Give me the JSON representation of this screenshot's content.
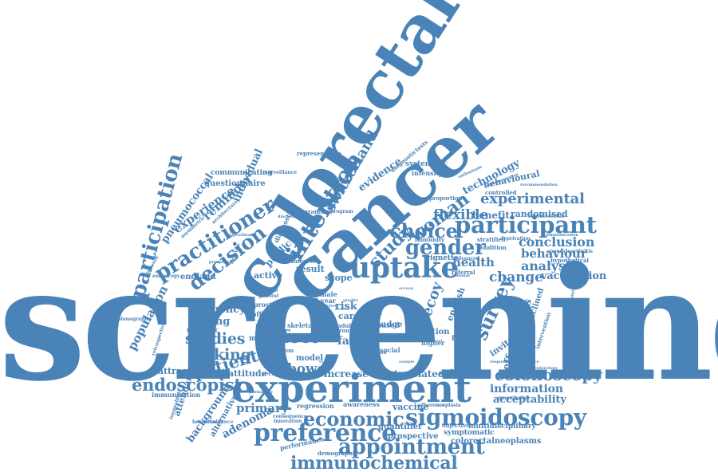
{
  "style": {
    "word_color": "#4a83b7",
    "background": "#ffffff"
  },
  "words": {
    "screening": "screening",
    "colorectal": "colorectal",
    "cancer": "cancer",
    "experiment": "experiment",
    "uptake": "uptake",
    "participant": "participant",
    "intention": "intention",
    "participation": "participation",
    "practitioner": "practitioner",
    "decision": "decision",
    "choice": "choice",
    "gender": "gender",
    "study": "study",
    "woman": "woman",
    "switzerland": "switzerland",
    "preference": "preference",
    "appointment": "appointment",
    "immunochemical": "immunochemical",
    "economic": "economic",
    "sigmoidoscopy": "sigmoidoscopy",
    "colonoscopy": "colonoscopy",
    "endoscopist": "endoscopist",
    "experimental": "experimental",
    "flexible": "flexible",
    "survey": "survey",
    "effect": "effect",
    "bowel": "bowel",
    "studies": "studies",
    "making": "making",
    "patient": "patient",
    "population": "population",
    "experience": "experience",
    "reminder": "reminder",
    "pneumococcal": "pneumococcal",
    "questionnaire": "questionnaire",
    "individual": "individual",
    "evidence": "evidence",
    "technology": "technology",
    "behavioural": "behavioural",
    "benefit": "benefit",
    "randomised": "randomised",
    "conclusion": "conclusion",
    "behaviour": "behaviour",
    "analysis": "analysis",
    "health": "health",
    "change": "change",
    "vaccination": "vaccination",
    "effectiveness": "effectiveness",
    "information": "information",
    "acceptability": "acceptability",
    "primary": "primary",
    "adenoma": "adenoma",
    "background": "background",
    "attendance": "attendance",
    "frequency": "frequency",
    "testing": "testing",
    "attraction": "attraction",
    "attitude": "attitude",
    "increase": "increase",
    "control": "control",
    "related": "related",
    "science": "science",
    "faecal": "faecal",
    "test": "test",
    "risk": "risk",
    "care": "care",
    "decoy": "decoy",
    "active": "active",
    "result": "result",
    "scope": "scope",
    "england": "england",
    "public": "public",
    "communicating": "communicating",
    "systematic": "systematic",
    "intensity": "intensity",
    "diagnostictests": "diagnostictests",
    "representative": "representative",
    "controlled": "controlled",
    "prospective": "prospective",
    "symptomatic": "symptomatic",
    "multidisciplinary": "multidisciplinary",
    "colorectalneoplasms": "colorectalneoplasms",
    "vaccine": "vaccine",
    "quantifier": "quantifier",
    "performance": "performance",
    "demographic": "demographic",
    "regression": "regression",
    "awareness": "awareness",
    "message": "message",
    "model": "model",
    "immunization": "immunization",
    "alternative": "alternative",
    "responder": "responder",
    "hypothetical": "hypothetical",
    "spondyloarthritis": "spondyloarthritis",
    "proportion": "proportion",
    "immunity": "immunity",
    "stratified": "stratified",
    "deprivation": "deprivation",
    "condition": "condition",
    "vignette": "vignette",
    "referral": "referral",
    "quantitative": "quantitative",
    "english": "english",
    "female": "female",
    "option": "option",
    "higher": "higher",
    "norm": "norm",
    "nudge": "nudge",
    "based": "based",
    "breast": "breast",
    "social": "social",
    "adult": "adult",
    "group": "group",
    "skeletal": "skeletal",
    "number": "number",
    "detection": "detection",
    "offering": "offering",
    "prostate": "prostate",
    "male": "male",
    "year": "year",
    "sectional": "sectional",
    "interest": "interest",
    "program": "program",
    "programme": "programme",
    "diagnostic": "diagnostic",
    "surveillance": "surveillance",
    "architecture": "architecture",
    "asymmetric": "asymmetric",
    "invitation": "invitation",
    "objective": "objective",
    "colonography": "colonography",
    "inequalities": "inequalities",
    "healthcare": "healthcare",
    "retrospective": "retrospective",
    "endoscopy": "endoscopy",
    "dominance": "dominance",
    "consequence": "consequence",
    "innovation": "innovation",
    "adherence": "adherence",
    "neoplasia": "neoplasia",
    "advanced": "advanced",
    "national": "national",
    "gastroenterology": "gastroenterology",
    "acceptance": "acceptance",
    "respondent": "respondent",
    "disinclined": "disinclined",
    "intervention": "intervention",
    "coverage": "coverage",
    "characteristic": "characteristic",
    "implementation": "implementation",
    "administration": "administration",
    "recommendation": "recommendation",
    "enthusiasm": "enthusiasm",
    "uncertainty": "uncertainty",
    "discrete": "discrete",
    "probability": "probability",
    "preventive": "preventive",
    "improve": "improve",
    "review": "review",
    "invited": "invited",
    "general": "general",
    "variable": "variable",
    "barrier": "barrier",
    "decile": "decile",
    "mailed": "mailed",
    "person": "person",
    "cortisol": "cortisol",
    "screen": "screen",
    "sample": "sample",
    "target": "target",
    "longitudinal": "longitudinal",
    "elicitation": "elicitation",
    "quality": "quality",
    "lower": "lower"
  }
}
